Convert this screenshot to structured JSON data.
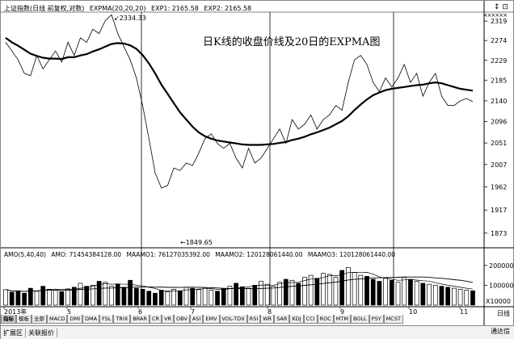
{
  "header": {
    "title": "上证指数(日线 前复权,对数)",
    "indicator": "EXPMA(20,20,20)",
    "exp1": "EXP1: 2165.58",
    "exp2": "EXP2: 2165.58"
  },
  "window_controls": "↕ ⊡",
  "stars": "××××××",
  "annotation": "日K线的收盘价线及20日的EXPMA图",
  "high_label": "2334.33",
  "low_label": "←1849.65",
  "price_axis": [
    "2319",
    "2274",
    "2229",
    "2185",
    "2140",
    "2096",
    "2051",
    "2007",
    "1962",
    "1917",
    "1873"
  ],
  "volume_header": {
    "amo": "AMO(5,40,40)",
    "amo_val": "AMO: 71454384128.00",
    "maamo1": "MAAMO1: 76127035392.00",
    "maamo2": "MAAMO2: 120128061440.00",
    "maamo3": "MAAMO3: 120128061440.00"
  },
  "volume_axis": [
    "200000",
    "100000"
  ],
  "volume_unit": "X10000",
  "time_axis": [
    "2013年",
    "5",
    "6",
    "7",
    "8",
    "9",
    "10",
    "11"
  ],
  "period_label": "日线",
  "tabs": [
    "指标",
    "模板",
    "全部",
    "MACD",
    "DMI",
    "DMA",
    "FSL",
    "TRIX",
    "BRAR",
    "CR",
    "VR",
    "OBV",
    "ASI",
    "EMV",
    "VOL-TDX",
    "RSI",
    "WR",
    "SAR",
    "KDJ",
    "CCI",
    "ROC",
    "MTM",
    "BOLL",
    "PSY",
    "MCST"
  ],
  "status_bar": [
    "扩展区",
    "关联报价"
  ],
  "status_right": "通达信",
  "colors": {
    "line": "#000000",
    "grid": "#000000"
  },
  "chart_data": {
    "type": "line",
    "title": "日K线的收盘价线及20日的EXPMA图",
    "ylim": [
      1850,
      2340
    ],
    "y_log": true,
    "series": [
      {
        "name": "close",
        "values": [
          2270,
          2250,
          2230,
          2200,
          2195,
          2240,
          2210,
          2230,
          2250,
          2225,
          2270,
          2240,
          2280,
          2270,
          2300,
          2290,
          2320,
          2334,
          2290,
          2260,
          2230,
          2190,
          2130,
          2060,
          1990,
          1960,
          1965,
          2000,
          1995,
          2010,
          2005,
          2030,
          2060,
          2070,
          2050,
          2040,
          2050,
          2020,
          2000,
          2040,
          2010,
          2020,
          2040,
          2060,
          2080,
          2050,
          2100,
          2080,
          2090,
          2110,
          2080,
          2100,
          2110,
          2130,
          2120,
          2180,
          2230,
          2240,
          2220,
          2180,
          2160,
          2190,
          2170,
          2190,
          2220,
          2180,
          2200,
          2150,
          2180,
          2200,
          2150,
          2130,
          2130,
          2140,
          2145,
          2138
        ]
      },
      {
        "name": "EXPMA20",
        "values": [
          2280,
          2270,
          2262,
          2253,
          2244,
          2239,
          2235,
          2233,
          2233,
          2232,
          2236,
          2236,
          2240,
          2243,
          2249,
          2254,
          2260,
          2266,
          2268,
          2267,
          2263,
          2255,
          2241,
          2222,
          2200,
          2175,
          2155,
          2135,
          2115,
          2100,
          2085,
          2073,
          2065,
          2060,
          2056,
          2054,
          2052,
          2050,
          2048,
          2047,
          2047,
          2047,
          2048,
          2049,
          2051,
          2053,
          2057,
          2060,
          2064,
          2069,
          2073,
          2078,
          2083,
          2090,
          2097,
          2107,
          2120,
          2132,
          2143,
          2152,
          2158,
          2163,
          2166,
          2168,
          2170,
          2172,
          2174,
          2175,
          2178,
          2180,
          2178,
          2174,
          2170,
          2166,
          2164,
          2162
        ]
      }
    ],
    "volume": [
      78000,
      65000,
      72000,
      60000,
      85000,
      70000,
      95000,
      80000,
      75000,
      68000,
      82000,
      90000,
      110000,
      95000,
      100000,
      120000,
      115000,
      95000,
      105000,
      90000,
      125000,
      85000,
      80000,
      70000,
      60000,
      75000,
      68000,
      80000,
      72000,
      90000,
      85000,
      78000,
      88000,
      76000,
      70000,
      82000,
      95000,
      110000,
      92000,
      85000,
      100000,
      120000,
      105000,
      95000,
      115000,
      130000,
      125000,
      110000,
      140000,
      150000,
      135000,
      160000,
      155000,
      140000,
      175000,
      190000,
      165000,
      150000,
      145000,
      130000,
      120000,
      135000,
      125000,
      115000,
      140000,
      130000,
      120000,
      110000,
      105000,
      100000,
      95000,
      90000,
      85000,
      80000,
      75000,
      72000
    ]
  }
}
